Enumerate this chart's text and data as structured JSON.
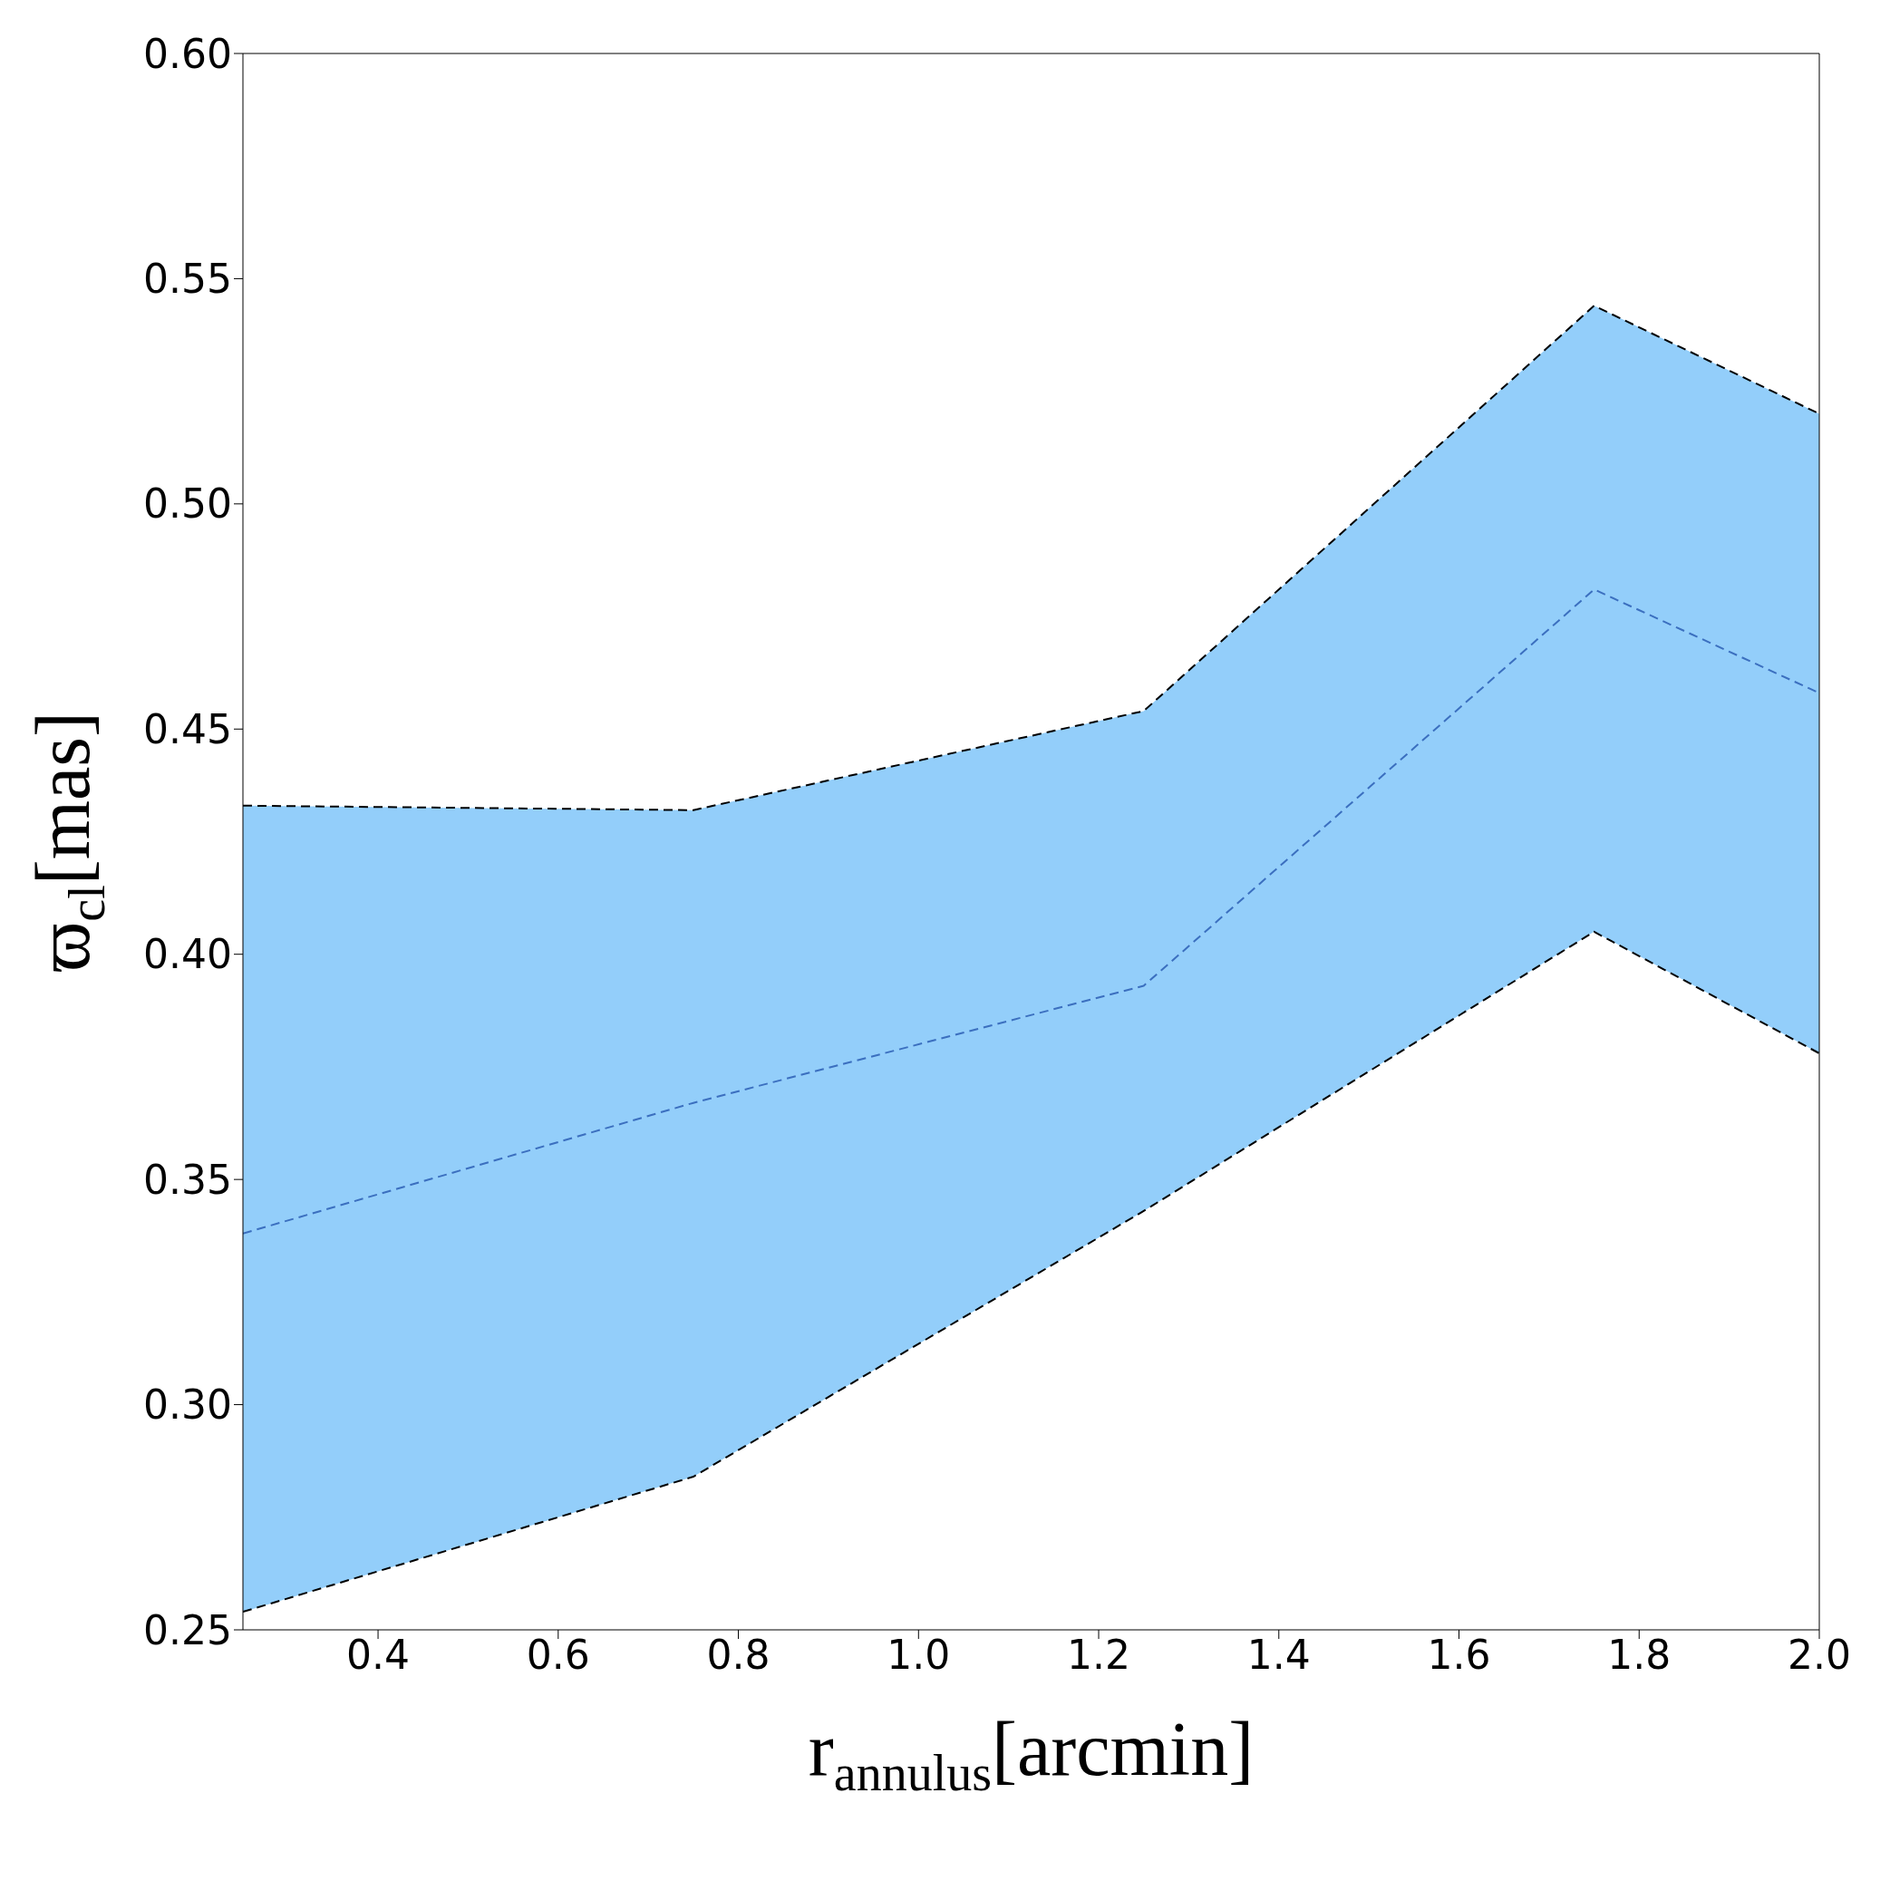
{
  "chart_data": {
    "type": "line",
    "xlabel": "r$_{annulus}$[arcmin]",
    "ylabel": "ϖ$_{cl}$[mas]",
    "x": [
      0.25,
      0.75,
      1.25,
      1.75,
      2.0
    ],
    "series": [
      {
        "color": "#3b6fbf",
        "line_style": "dashed",
        "values": [
          0.338,
          0.367,
          0.393,
          0.481,
          0.458
        ],
        "lower": [
          0.254,
          0.284,
          0.343,
          0.405,
          0.378
        ],
        "upper": [
          0.433,
          0.432,
          0.454,
          0.544,
          0.52
        ]
      },
      {
        "color": "#000000",
        "line_style": "dashed",
        "values": [
          0.254,
          0.284,
          0.343,
          0.405,
          0.378
        ]
      },
      {
        "color": "#000000",
        "line_style": "dashed",
        "values": [
          0.433,
          0.432,
          0.454,
          0.544,
          0.52
        ]
      }
    ],
    "xlim": [
      0.25,
      2.0
    ],
    "xticks": [
      0.4,
      0.6,
      0.8,
      {
        "value": 1,
        "label": "1.0"
      },
      1.2,
      1.4,
      1.6,
      1.8,
      {
        "value": 2,
        "label": "2.0"
      }
    ],
    "ylim": [
      0.25,
      0.6
    ],
    "yticks": [
      0.25,
      {
        "value": 0.3,
        "label": "0.30"
      },
      0.35,
      {
        "value": 0.4,
        "label": "0.40"
      },
      0.45,
      {
        "value": 0.5,
        "label": "0.50"
      },
      0.55,
      {
        "value": 0.6,
        "label": "0.60"
      }
    ],
    "grid": false,
    "legend": false,
    "marker": "none"
  }
}
